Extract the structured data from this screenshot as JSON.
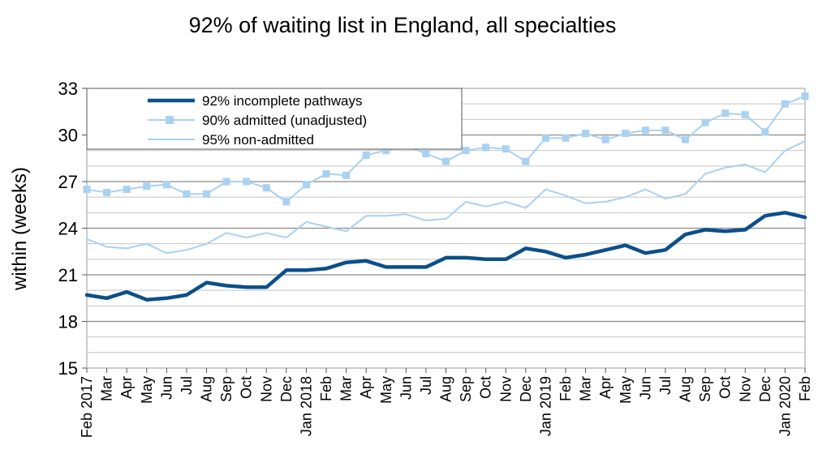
{
  "chart_data": {
    "type": "line",
    "title": "92% of waiting list in England, all specialties",
    "xlabel": "",
    "ylabel": "within  (weeks)",
    "ylim": [
      15,
      33
    ],
    "yticks": [
      15,
      18,
      21,
      24,
      27,
      30,
      33
    ],
    "grid": "horizontal",
    "legend_position": "top-left",
    "categories": [
      "Feb 2017",
      "Mar",
      "Apr",
      "May",
      "Jun",
      "Jul",
      "Aug",
      "Sep",
      "Oct",
      "Nov",
      "Dec",
      "Jan 2018",
      "Feb",
      "Mar",
      "Apr",
      "May",
      "Jun",
      "Jul",
      "Aug",
      "Sep",
      "Oct",
      "Nov",
      "Dec",
      "Jan 2019",
      "Feb",
      "Mar",
      "Apr",
      "May",
      "Jun",
      "Jul",
      "Aug",
      "Sep",
      "Oct",
      "Nov",
      "Dec",
      "Jan 2020",
      "Feb"
    ],
    "series": [
      {
        "name": "92%  incomplete  pathways",
        "color": "#0b4f8a",
        "style": "line-thick",
        "values": [
          19.7,
          19.5,
          19.9,
          19.4,
          19.5,
          19.7,
          20.5,
          20.3,
          20.2,
          20.2,
          21.3,
          21.3,
          21.4,
          21.8,
          21.9,
          21.5,
          21.5,
          21.5,
          22.1,
          22.1,
          22.0,
          22.0,
          22.7,
          22.5,
          22.1,
          22.3,
          22.6,
          22.9,
          22.4,
          22.6,
          23.6,
          23.9,
          23.8,
          23.9,
          24.8,
          25.0,
          24.7
        ]
      },
      {
        "name": "90%  admitted  (unadjusted)",
        "color": "#a8d1f2",
        "style": "line-square-markers",
        "values": [
          26.5,
          26.3,
          26.5,
          26.7,
          26.8,
          26.2,
          26.2,
          27.0,
          27.0,
          26.6,
          25.7,
          26.8,
          27.5,
          27.4,
          28.7,
          29.0,
          29.3,
          28.8,
          28.3,
          29.0,
          29.2,
          29.1,
          28.3,
          29.8,
          29.8,
          30.1,
          29.7,
          30.1,
          30.3,
          30.3,
          29.7,
          30.8,
          31.4,
          31.3,
          30.2,
          32.0,
          32.5
        ]
      },
      {
        "name": "95%  non-admitted",
        "color": "#a8d1f2",
        "style": "line-thin",
        "values": [
          23.3,
          22.8,
          22.7,
          23.0,
          22.4,
          22.6,
          23.0,
          23.7,
          23.4,
          23.7,
          23.4,
          24.4,
          24.1,
          23.8,
          24.8,
          24.8,
          24.9,
          24.5,
          24.6,
          25.7,
          25.4,
          25.7,
          25.3,
          26.5,
          26.1,
          25.6,
          25.7,
          26.0,
          26.5,
          25.9,
          26.2,
          27.5,
          27.9,
          28.1,
          27.6,
          29.0,
          29.6
        ]
      }
    ]
  }
}
